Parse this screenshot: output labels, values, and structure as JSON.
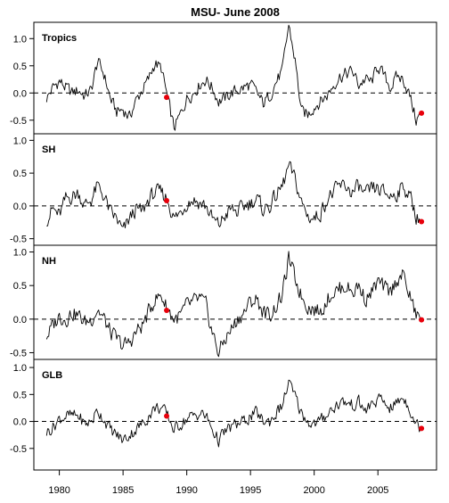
{
  "title": "MSU- June 2008",
  "chart_data": [
    {
      "type": "line",
      "label": "Tropics",
      "x_range": [
        1979.0,
        2008.42
      ],
      "ylim": [
        -0.75,
        1.3
      ],
      "y_ticks": [
        "1.0",
        "0.5",
        "0.0",
        "-0.5"
      ],
      "y_tick_values": [
        1.0,
        0.5,
        0.0,
        -0.5
      ],
      "reference_line": 0.0,
      "anchors": [
        [
          1979.0,
          -0.1
        ],
        [
          1979.5,
          0.1
        ],
        [
          1980.0,
          0.22
        ],
        [
          1980.5,
          0.1
        ],
        [
          1981.0,
          0.0
        ],
        [
          1981.5,
          0.05
        ],
        [
          1982.0,
          -0.05
        ],
        [
          1982.5,
          0.05
        ],
        [
          1983.0,
          0.58
        ],
        [
          1983.5,
          0.35
        ],
        [
          1984.0,
          -0.1
        ],
        [
          1984.5,
          -0.35
        ],
        [
          1985.0,
          -0.3
        ],
        [
          1985.5,
          -0.45
        ],
        [
          1986.0,
          -0.15
        ],
        [
          1986.5,
          0.05
        ],
        [
          1987.0,
          0.25
        ],
        [
          1987.5,
          0.55
        ],
        [
          1988.0,
          0.45
        ],
        [
          1988.5,
          -0.1
        ],
        [
          1989.0,
          -0.65
        ],
        [
          1989.5,
          -0.4
        ],
        [
          1990.0,
          -0.1
        ],
        [
          1990.5,
          0.0
        ],
        [
          1991.0,
          0.15
        ],
        [
          1991.5,
          0.25
        ],
        [
          1992.0,
          0.1
        ],
        [
          1992.5,
          -0.15
        ],
        [
          1993.0,
          -0.1
        ],
        [
          1993.5,
          0.0
        ],
        [
          1994.0,
          0.05
        ],
        [
          1994.5,
          0.1
        ],
        [
          1995.0,
          0.15
        ],
        [
          1995.5,
          0.0
        ],
        [
          1996.0,
          -0.2
        ],
        [
          1996.5,
          -0.05
        ],
        [
          1997.0,
          0.2
        ],
        [
          1997.5,
          0.4
        ],
        [
          1998.0,
          1.25
        ],
        [
          1998.5,
          0.6
        ],
        [
          1999.0,
          -0.35
        ],
        [
          1999.5,
          -0.4
        ],
        [
          2000.0,
          -0.25
        ],
        [
          2000.5,
          -0.15
        ],
        [
          2001.0,
          -0.05
        ],
        [
          2001.5,
          0.15
        ],
        [
          2002.0,
          0.3
        ],
        [
          2002.5,
          0.35
        ],
        [
          2003.0,
          0.4
        ],
        [
          2003.5,
          0.15
        ],
        [
          2004.0,
          0.25
        ],
        [
          2004.5,
          0.2
        ],
        [
          2005.0,
          0.5
        ],
        [
          2005.5,
          0.3
        ],
        [
          2006.0,
          0.1
        ],
        [
          2006.5,
          0.3
        ],
        [
          2007.0,
          0.25
        ],
        [
          2007.5,
          -0.05
        ],
        [
          2008.0,
          -0.5
        ],
        [
          2008.42,
          -0.37
        ]
      ],
      "highlight_points": [
        {
          "x": 1988.42,
          "y": -0.08
        },
        {
          "x": 2008.42,
          "y": -0.37
        }
      ]
    },
    {
      "type": "line",
      "label": "SH",
      "x_range": [
        1979.0,
        2008.42
      ],
      "ylim": [
        -0.6,
        1.1
      ],
      "y_ticks": [
        "1.0",
        "0.5",
        "0.0",
        "-0.5"
      ],
      "y_tick_values": [
        1.0,
        0.5,
        0.0,
        -0.5
      ],
      "reference_line": 0.0,
      "anchors": [
        [
          1979.0,
          -0.2
        ],
        [
          1979.5,
          -0.05
        ],
        [
          1980.0,
          -0.15
        ],
        [
          1980.5,
          0.1
        ],
        [
          1981.0,
          0.15
        ],
        [
          1981.5,
          0.2
        ],
        [
          1982.0,
          0.0
        ],
        [
          1982.5,
          0.1
        ],
        [
          1983.0,
          0.3
        ],
        [
          1983.5,
          0.15
        ],
        [
          1984.0,
          -0.1
        ],
        [
          1984.5,
          -0.2
        ],
        [
          1985.0,
          -0.4
        ],
        [
          1985.5,
          -0.2
        ],
        [
          1986.0,
          -0.05
        ],
        [
          1986.5,
          -0.1
        ],
        [
          1987.0,
          0.1
        ],
        [
          1987.5,
          0.2
        ],
        [
          1988.0,
          0.2
        ],
        [
          1988.5,
          0.1
        ],
        [
          1989.0,
          -0.2
        ],
        [
          1989.5,
          -0.1
        ],
        [
          1990.0,
          0.05
        ],
        [
          1990.5,
          0.1
        ],
        [
          1991.0,
          0.05
        ],
        [
          1991.5,
          0.0
        ],
        [
          1992.0,
          -0.2
        ],
        [
          1992.5,
          -0.3
        ],
        [
          1993.0,
          -0.15
        ],
        [
          1993.5,
          -0.05
        ],
        [
          1994.0,
          -0.1
        ],
        [
          1994.5,
          0.0
        ],
        [
          1995.0,
          0.05
        ],
        [
          1995.5,
          0.1
        ],
        [
          1996.0,
          -0.05
        ],
        [
          1996.5,
          0.0
        ],
        [
          1997.0,
          0.15
        ],
        [
          1997.5,
          0.3
        ],
        [
          1998.0,
          0.6
        ],
        [
          1998.5,
          0.4
        ],
        [
          1999.0,
          0.05
        ],
        [
          1999.5,
          -0.15
        ],
        [
          2000.0,
          -0.2
        ],
        [
          2000.5,
          -0.1
        ],
        [
          2001.0,
          0.1
        ],
        [
          2001.5,
          0.2
        ],
        [
          2002.0,
          0.3
        ],
        [
          2002.5,
          0.3
        ],
        [
          2003.0,
          0.2
        ],
        [
          2003.5,
          0.3
        ],
        [
          2004.0,
          0.15
        ],
        [
          2004.5,
          0.25
        ],
        [
          2005.0,
          0.25
        ],
        [
          2005.5,
          0.2
        ],
        [
          2006.0,
          0.15
        ],
        [
          2006.5,
          0.2
        ],
        [
          2007.0,
          0.3
        ],
        [
          2007.5,
          0.15
        ],
        [
          2008.0,
          -0.15
        ],
        [
          2008.42,
          -0.24
        ]
      ],
      "highlight_points": [
        {
          "x": 1988.42,
          "y": 0.08
        },
        {
          "x": 2008.42,
          "y": -0.24
        }
      ]
    },
    {
      "type": "line",
      "label": "NH",
      "x_range": [
        1979.0,
        2008.42
      ],
      "ylim": [
        -0.6,
        1.1
      ],
      "y_ticks": [
        "1.0",
        "0.5",
        "0.0",
        "-0.5"
      ],
      "y_tick_values": [
        1.0,
        0.5,
        0.0,
        -0.5
      ],
      "reference_line": 0.0,
      "anchors": [
        [
          1979.0,
          -0.25
        ],
        [
          1979.5,
          -0.1
        ],
        [
          1980.0,
          0.05
        ],
        [
          1980.5,
          0.0
        ],
        [
          1981.0,
          0.1
        ],
        [
          1981.5,
          0.05
        ],
        [
          1982.0,
          -0.05
        ],
        [
          1982.5,
          0.0
        ],
        [
          1983.0,
          0.15
        ],
        [
          1983.5,
          0.0
        ],
        [
          1984.0,
          -0.2
        ],
        [
          1984.5,
          -0.3
        ],
        [
          1985.0,
          -0.4
        ],
        [
          1985.5,
          -0.35
        ],
        [
          1986.0,
          -0.2
        ],
        [
          1986.5,
          -0.1
        ],
        [
          1987.0,
          0.1
        ],
        [
          1987.5,
          0.3
        ],
        [
          1988.0,
          0.35
        ],
        [
          1988.5,
          0.15
        ],
        [
          1989.0,
          0.0
        ],
        [
          1989.5,
          0.05
        ],
        [
          1990.0,
          0.2
        ],
        [
          1990.5,
          0.25
        ],
        [
          1991.0,
          0.3
        ],
        [
          1991.5,
          0.2
        ],
        [
          1992.0,
          -0.2
        ],
        [
          1992.5,
          -0.5
        ],
        [
          1993.0,
          -0.3
        ],
        [
          1993.5,
          -0.15
        ],
        [
          1994.0,
          0.0
        ],
        [
          1994.5,
          0.1
        ],
        [
          1995.0,
          0.25
        ],
        [
          1995.5,
          0.3
        ],
        [
          1996.0,
          0.1
        ],
        [
          1996.5,
          0.05
        ],
        [
          1997.0,
          0.2
        ],
        [
          1997.5,
          0.35
        ],
        [
          1998.0,
          0.9
        ],
        [
          1998.5,
          0.6
        ],
        [
          1999.0,
          0.35
        ],
        [
          1999.5,
          0.2
        ],
        [
          2000.0,
          0.15
        ],
        [
          2000.5,
          0.1
        ],
        [
          2001.0,
          0.3
        ],
        [
          2001.5,
          0.4
        ],
        [
          2002.0,
          0.45
        ],
        [
          2002.5,
          0.5
        ],
        [
          2003.0,
          0.4
        ],
        [
          2003.5,
          0.5
        ],
        [
          2004.0,
          0.3
        ],
        [
          2004.5,
          0.4
        ],
        [
          2005.0,
          0.55
        ],
        [
          2005.5,
          0.45
        ],
        [
          2006.0,
          0.4
        ],
        [
          2006.5,
          0.6
        ],
        [
          2007.0,
          0.65
        ],
        [
          2007.5,
          0.35
        ],
        [
          2008.0,
          0.05
        ],
        [
          2008.42,
          -0.01
        ]
      ],
      "highlight_points": [
        {
          "x": 1988.42,
          "y": 0.13
        },
        {
          "x": 2008.42,
          "y": -0.01
        }
      ]
    },
    {
      "type": "line",
      "label": "GLB",
      "x_range": [
        1979.0,
        2008.42
      ],
      "ylim": [
        -0.9,
        1.15
      ],
      "y_ticks": [
        "1.0",
        "0.5",
        "0.0",
        "-0.5"
      ],
      "y_tick_values": [
        1.0,
        0.5,
        0.0,
        -0.5
      ],
      "reference_line": 0.0,
      "anchors": [
        [
          1979.0,
          -0.2
        ],
        [
          1979.5,
          -0.1
        ],
        [
          1980.0,
          0.05
        ],
        [
          1980.5,
          0.1
        ],
        [
          1981.0,
          0.1
        ],
        [
          1981.5,
          0.1
        ],
        [
          1982.0,
          -0.05
        ],
        [
          1982.5,
          0.0
        ],
        [
          1983.0,
          0.2
        ],
        [
          1983.5,
          0.05
        ],
        [
          1984.0,
          -0.15
        ],
        [
          1984.5,
          -0.25
        ],
        [
          1985.0,
          -0.35
        ],
        [
          1985.5,
          -0.25
        ],
        [
          1986.0,
          -0.15
        ],
        [
          1986.5,
          -0.05
        ],
        [
          1987.0,
          0.1
        ],
        [
          1987.5,
          0.25
        ],
        [
          1988.0,
          0.25
        ],
        [
          1988.5,
          0.1
        ],
        [
          1989.0,
          -0.15
        ],
        [
          1989.5,
          -0.05
        ],
        [
          1990.0,
          0.05
        ],
        [
          1990.5,
          0.1
        ],
        [
          1991.0,
          0.15
        ],
        [
          1991.5,
          0.1
        ],
        [
          1992.0,
          -0.15
        ],
        [
          1992.5,
          -0.35
        ],
        [
          1993.0,
          -0.2
        ],
        [
          1993.5,
          -0.1
        ],
        [
          1994.0,
          -0.05
        ],
        [
          1994.5,
          0.0
        ],
        [
          1995.0,
          0.1
        ],
        [
          1995.5,
          0.15
        ],
        [
          1996.0,
          0.0
        ],
        [
          1996.5,
          0.0
        ],
        [
          1997.0,
          0.15
        ],
        [
          1997.5,
          0.3
        ],
        [
          1998.0,
          0.72
        ],
        [
          1998.5,
          0.45
        ],
        [
          1999.0,
          0.15
        ],
        [
          1999.5,
          0.0
        ],
        [
          2000.0,
          -0.05
        ],
        [
          2000.5,
          0.0
        ],
        [
          2001.0,
          0.15
        ],
        [
          2001.5,
          0.25
        ],
        [
          2002.0,
          0.35
        ],
        [
          2002.5,
          0.35
        ],
        [
          2003.0,
          0.3
        ],
        [
          2003.5,
          0.35
        ],
        [
          2004.0,
          0.2
        ],
        [
          2004.5,
          0.3
        ],
        [
          2005.0,
          0.4
        ],
        [
          2005.5,
          0.35
        ],
        [
          2006.0,
          0.25
        ],
        [
          2006.5,
          0.35
        ],
        [
          2007.0,
          0.45
        ],
        [
          2007.5,
          0.25
        ],
        [
          2008.0,
          -0.05
        ],
        [
          2008.42,
          -0.13
        ]
      ],
      "highlight_points": [
        {
          "x": 1988.42,
          "y": 0.1
        },
        {
          "x": 2008.42,
          "y": -0.13
        }
      ]
    }
  ],
  "x_axis": {
    "xlim": [
      1978.0,
      2009.6
    ],
    "ticks": [
      1980,
      1985,
      1990,
      1995,
      2000,
      2005
    ],
    "tick_labels": [
      "1980",
      "1985",
      "1990",
      "1995",
      "2000",
      "2005"
    ]
  },
  "styles": {
    "line_color": "#000000",
    "highlight_color": "#e8000b",
    "reference_line_style": "dashed"
  }
}
